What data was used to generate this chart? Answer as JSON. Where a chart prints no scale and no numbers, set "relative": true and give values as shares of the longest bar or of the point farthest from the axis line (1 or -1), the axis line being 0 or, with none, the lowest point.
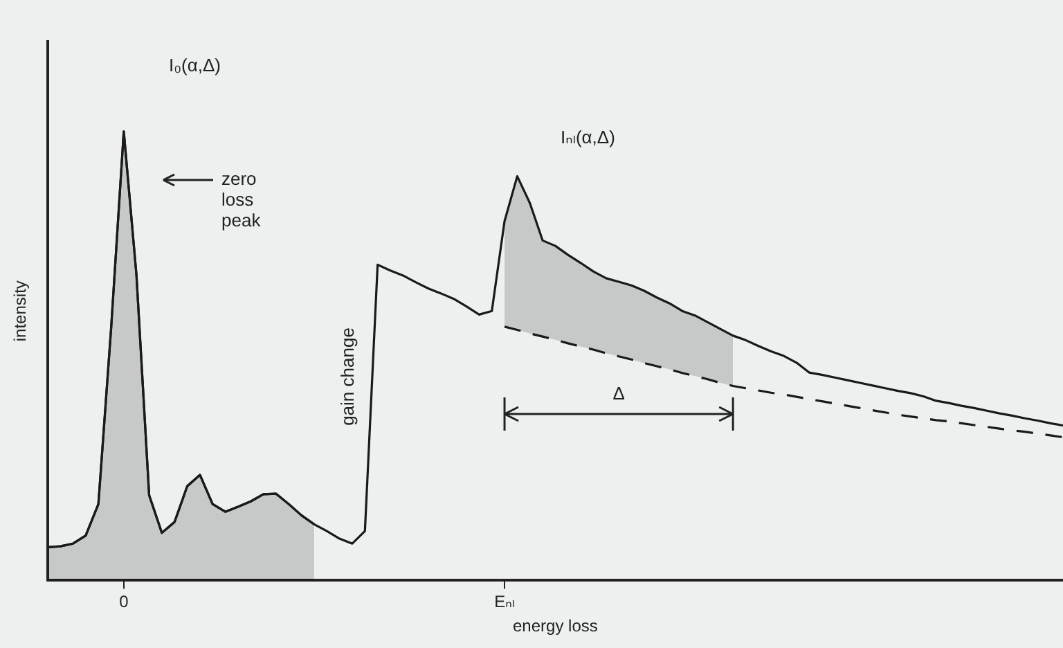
{
  "chart_data": {
    "type": "line",
    "relative": true,
    "marker": "none",
    "xlabel": "energy loss",
    "ylabel": "intensity",
    "categories": [
      null,
      null,
      null,
      null,
      null,
      null,
      "0",
      null,
      null,
      null,
      null,
      null,
      null,
      null,
      null,
      null,
      null,
      null,
      null,
      null,
      null,
      null,
      null,
      null,
      null,
      null,
      null,
      null,
      null,
      null,
      null,
      null,
      null,
      null,
      null,
      null,
      "Eₙₗ",
      null,
      null,
      null,
      null,
      null,
      null,
      null,
      null,
      null,
      null,
      null,
      null,
      null,
      null,
      null,
      null,
      null,
      null,
      null,
      null,
      null,
      null,
      null,
      null,
      null,
      null,
      null,
      null,
      null,
      null,
      null,
      null,
      null,
      null,
      null,
      null,
      null,
      null,
      null,
      null,
      null,
      null,
      null,
      null
    ],
    "annotations": [
      "I₀(α,Δ)",
      "zero loss peak",
      "gain change",
      "Iₙₗ(α,Δ)",
      "Δ"
    ],
    "series": [
      {
        "type": "line",
        "color": "#1a1a1a",
        "values": [
          0.074,
          0.076,
          0.082,
          0.1,
          0.17,
          0.56,
          1.0,
          0.68,
          0.19,
          0.106,
          0.13,
          0.21,
          0.235,
          0.17,
          0.153,
          0.164,
          0.176,
          0.192,
          0.193,
          0.17,
          0.145,
          0.125,
          0.11,
          0.093,
          0.082,
          0.11,
          0.703,
          0.69,
          0.679,
          0.664,
          0.65,
          0.639,
          0.627,
          0.61,
          0.592,
          0.6,
          0.8,
          0.9,
          0.84,
          0.757,
          0.745,
          0.725,
          0.707,
          0.688,
          0.673,
          0.665,
          0.657,
          0.645,
          0.63,
          0.617,
          0.6,
          0.59,
          0.575,
          0.56,
          0.545,
          0.535,
          0.522,
          0.51,
          0.5,
          0.485,
          0.463,
          0.458,
          0.452,
          0.446,
          0.44,
          0.434,
          0.428,
          0.422,
          0.417,
          0.41,
          0.4,
          0.395,
          0.389,
          0.384,
          0.378,
          0.372,
          0.367,
          0.361,
          0.356,
          0.35,
          0.345
        ]
      },
      {
        "type": "line",
        "line_style": "dashed",
        "color": "#1a1a1a",
        "values": [
          null,
          null,
          null,
          null,
          null,
          null,
          null,
          null,
          null,
          null,
          null,
          null,
          null,
          null,
          null,
          null,
          null,
          null,
          null,
          null,
          null,
          null,
          null,
          null,
          null,
          null,
          null,
          null,
          null,
          null,
          null,
          null,
          null,
          null,
          null,
          null,
          0.565,
          0.558,
          0.55,
          0.543,
          0.536,
          0.528,
          0.521,
          0.514,
          0.506,
          0.499,
          0.492,
          0.484,
          0.477,
          0.47,
          0.462,
          0.455,
          0.448,
          0.44,
          0.433,
          0.428,
          0.423,
          0.418,
          0.414,
          0.409,
          0.404,
          0.399,
          0.394,
          0.389,
          0.384,
          0.379,
          0.374,
          0.369,
          0.365,
          0.361,
          0.357,
          0.354,
          0.35,
          0.346,
          0.342,
          0.338,
          0.334,
          0.331,
          0.327,
          0.323,
          0.319
        ],
        "lower": [
          null,
          null,
          null,
          null,
          null,
          null,
          null,
          null,
          null,
          null,
          null,
          null,
          null,
          null,
          null,
          null,
          null,
          null,
          null,
          null,
          null,
          null,
          null,
          null,
          null,
          null,
          null,
          null,
          null,
          null,
          null,
          null,
          null,
          null,
          null,
          null,
          0.565,
          0.558,
          0.55,
          0.543,
          0.536,
          0.528,
          0.521,
          0.514,
          0.506,
          0.499,
          0.492,
          0.484,
          0.477,
          0.47,
          0.462,
          0.455,
          0.448,
          0.44,
          0.433,
          null,
          null,
          null,
          null,
          null,
          null,
          null,
          null,
          null,
          null,
          null,
          null,
          null,
          null,
          null,
          null,
          null,
          null,
          null,
          null,
          null,
          null,
          null,
          null,
          null,
          null
        ],
        "upper": [
          null,
          null,
          null,
          null,
          null,
          null,
          null,
          null,
          null,
          null,
          null,
          null,
          null,
          null,
          null,
          null,
          null,
          null,
          null,
          null,
          null,
          null,
          null,
          null,
          null,
          null,
          null,
          null,
          null,
          null,
          null,
          null,
          null,
          null,
          null,
          null,
          0.8,
          0.9,
          0.84,
          0.757,
          0.745,
          0.725,
          0.707,
          0.688,
          0.673,
          0.665,
          0.657,
          0.645,
          0.63,
          0.617,
          0.6,
          0.59,
          0.575,
          0.56,
          0.545,
          null,
          null,
          null,
          null,
          null,
          null,
          null,
          null,
          null,
          null,
          null,
          null,
          null,
          null,
          null,
          null,
          null,
          null,
          null,
          null,
          null,
          null,
          null,
          null,
          null,
          null
        ]
      },
      {
        "type": "area",
        "color": "#1a1a1a",
        "values": [
          0.074,
          0.076,
          0.082,
          0.1,
          0.17,
          0.56,
          1.0,
          0.68,
          0.19,
          0.106,
          0.13,
          0.21,
          0.235,
          0.17,
          0.153,
          0.164,
          0.176,
          0.192,
          0.193,
          0.17,
          0.145,
          0.125,
          null,
          null,
          null,
          null,
          null,
          null,
          null,
          null,
          null,
          null,
          null,
          null,
          null,
          null,
          null,
          null,
          null,
          null,
          null,
          null,
          null,
          null,
          null,
          null,
          null,
          null,
          null,
          null,
          null,
          null,
          null,
          null,
          null,
          null,
          null,
          null,
          null,
          null,
          null,
          null,
          null,
          null,
          null,
          null,
          null,
          null,
          null,
          null,
          null,
          null,
          null,
          null,
          null,
          null,
          null,
          null,
          null,
          null,
          null
        ]
      }
    ]
  }
}
